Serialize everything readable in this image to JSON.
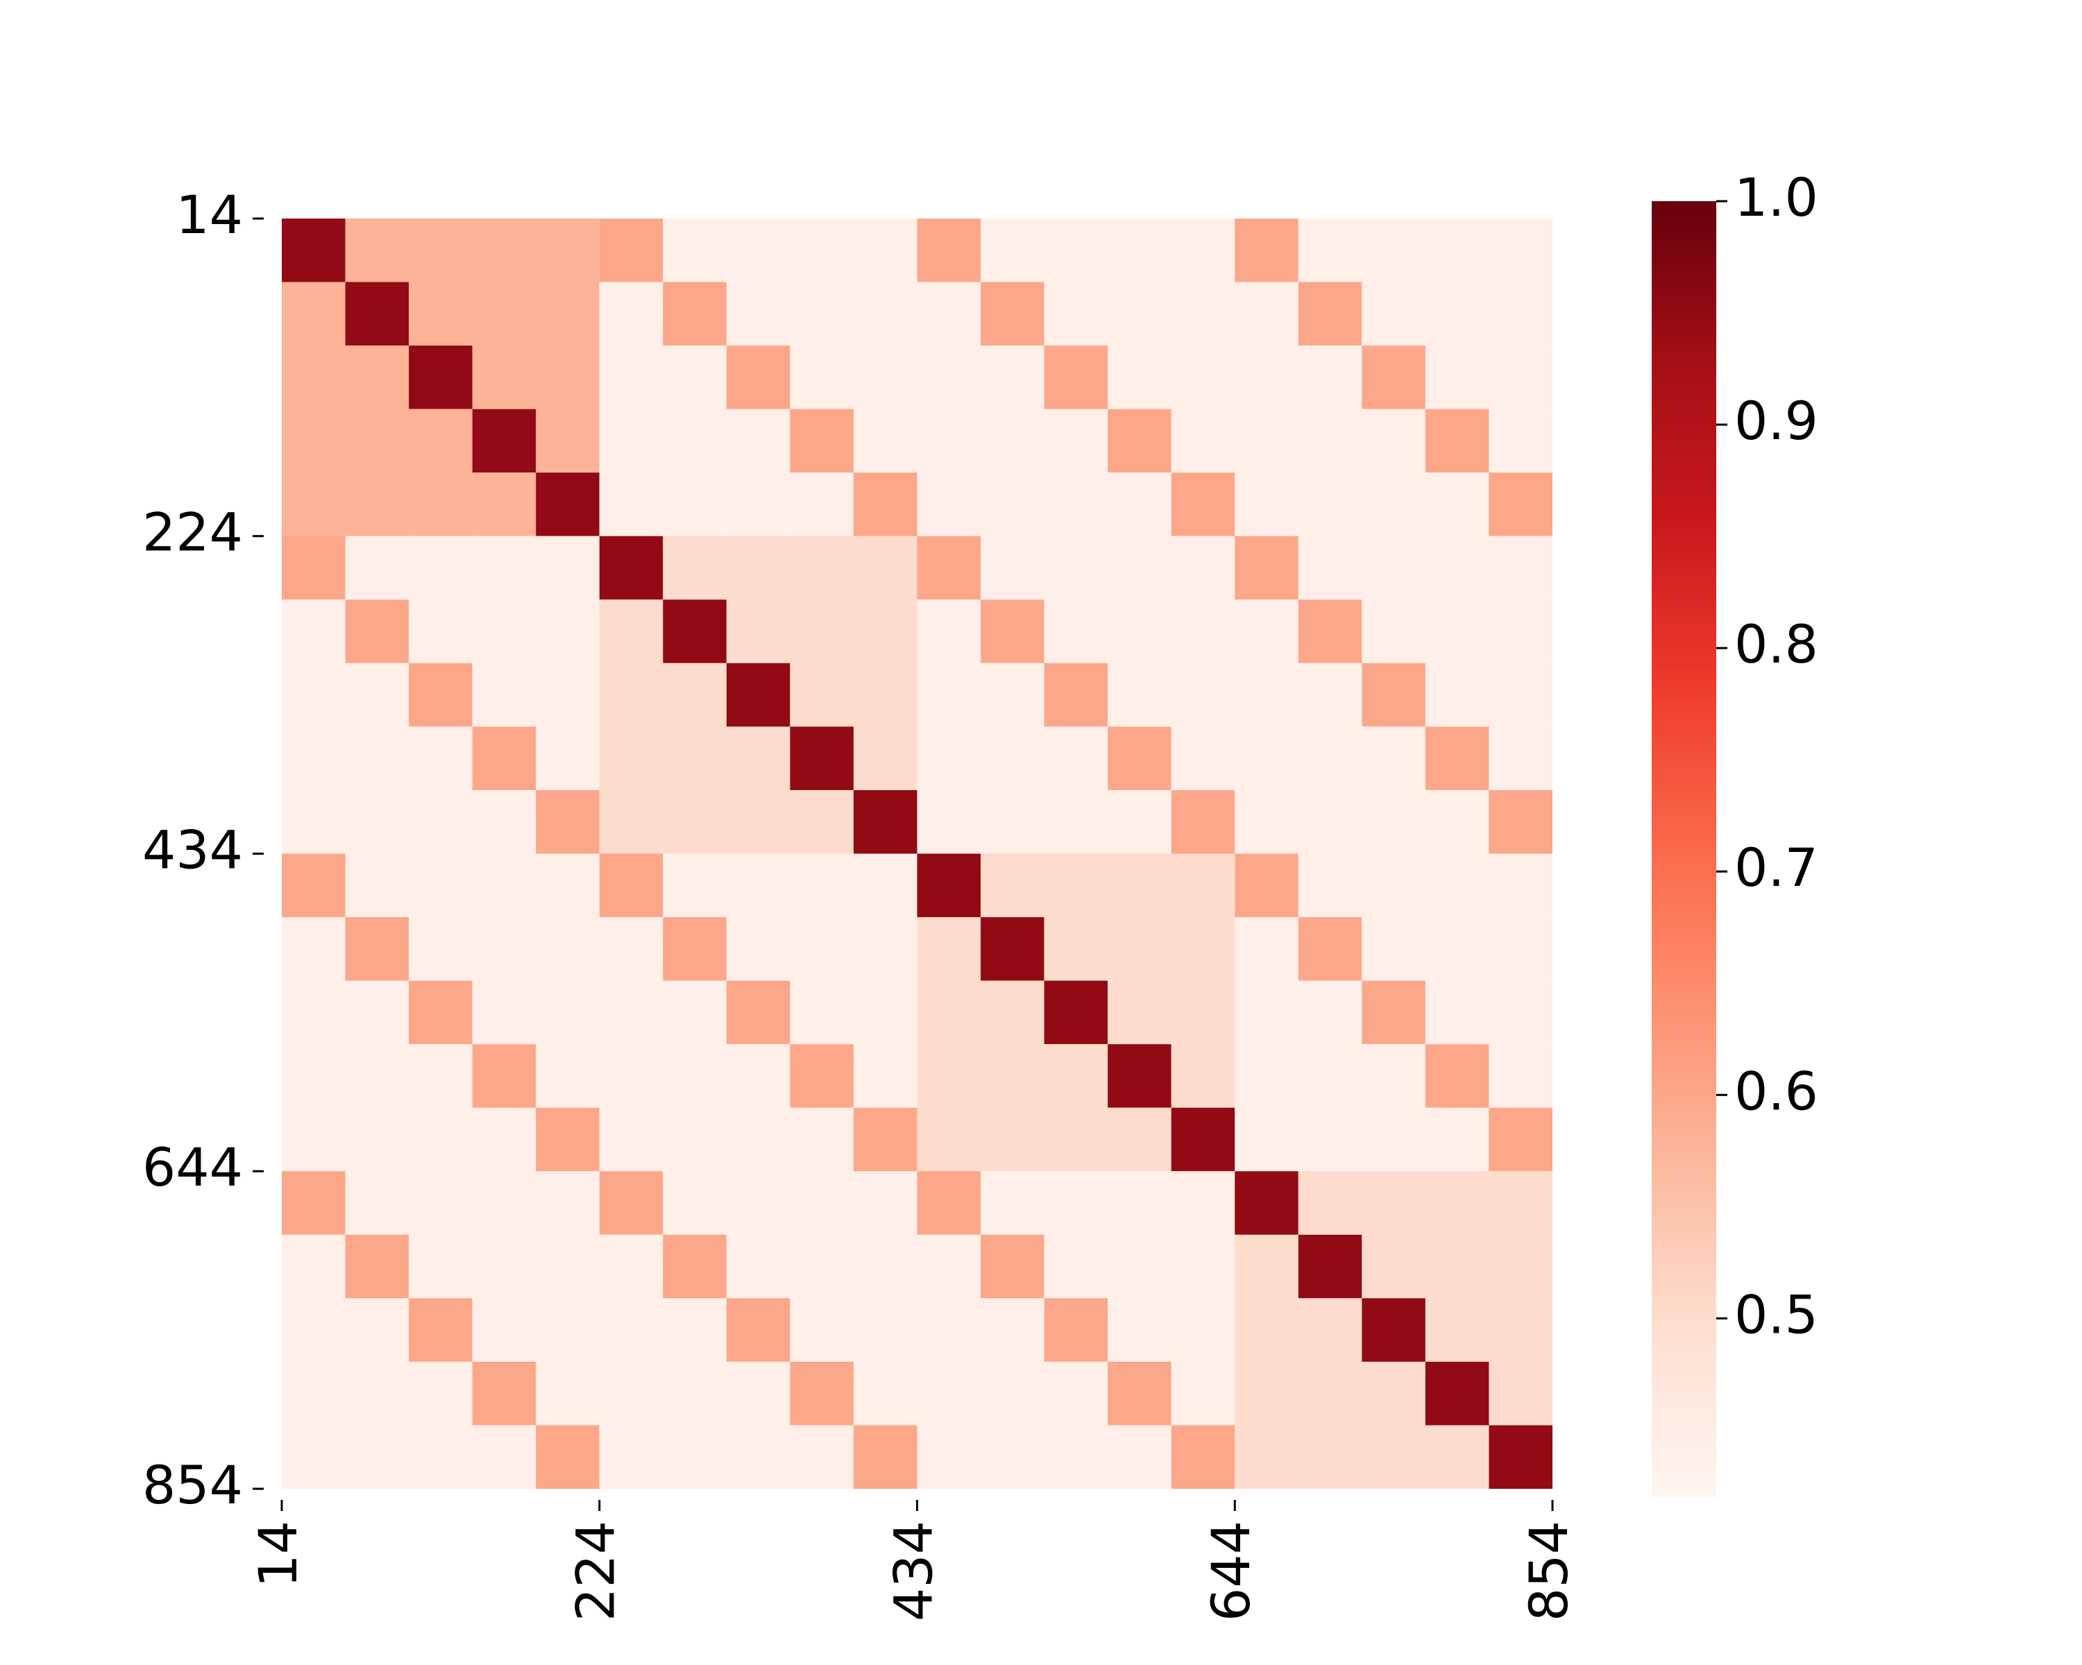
{
  "chart_data": {
    "type": "heatmap",
    "bins": [
      14,
      56,
      98,
      140,
      182,
      224,
      266,
      308,
      350,
      392,
      434,
      476,
      518,
      560,
      602,
      644,
      686,
      728,
      770,
      812,
      854
    ],
    "values": [
      [
        0.95,
        0.58,
        0.58,
        0.58,
        0.58,
        0.6,
        0.44,
        0.44,
        0.44,
        0.44,
        0.6,
        0.44,
        0.44,
        0.44,
        0.44,
        0.6,
        0.44,
        0.44,
        0.44,
        0.44
      ],
      [
        0.58,
        0.95,
        0.58,
        0.58,
        0.58,
        0.44,
        0.6,
        0.44,
        0.44,
        0.44,
        0.44,
        0.6,
        0.44,
        0.44,
        0.44,
        0.44,
        0.6,
        0.44,
        0.44,
        0.44
      ],
      [
        0.58,
        0.58,
        0.95,
        0.58,
        0.58,
        0.44,
        0.44,
        0.6,
        0.44,
        0.44,
        0.44,
        0.44,
        0.6,
        0.44,
        0.44,
        0.44,
        0.44,
        0.6,
        0.44,
        0.44
      ],
      [
        0.58,
        0.58,
        0.58,
        0.95,
        0.58,
        0.44,
        0.44,
        0.44,
        0.6,
        0.44,
        0.44,
        0.44,
        0.44,
        0.6,
        0.44,
        0.44,
        0.44,
        0.44,
        0.6,
        0.44
      ],
      [
        0.58,
        0.58,
        0.58,
        0.58,
        0.95,
        0.44,
        0.44,
        0.44,
        0.44,
        0.6,
        0.44,
        0.44,
        0.44,
        0.44,
        0.6,
        0.44,
        0.44,
        0.44,
        0.44,
        0.6
      ],
      [
        0.6,
        0.44,
        0.44,
        0.44,
        0.44,
        0.95,
        0.5,
        0.5,
        0.5,
        0.5,
        0.6,
        0.44,
        0.44,
        0.44,
        0.44,
        0.6,
        0.44,
        0.44,
        0.44,
        0.44
      ],
      [
        0.44,
        0.6,
        0.44,
        0.44,
        0.44,
        0.5,
        0.95,
        0.5,
        0.5,
        0.5,
        0.44,
        0.6,
        0.44,
        0.44,
        0.44,
        0.44,
        0.6,
        0.44,
        0.44,
        0.44
      ],
      [
        0.44,
        0.44,
        0.6,
        0.44,
        0.44,
        0.5,
        0.5,
        0.95,
        0.5,
        0.5,
        0.44,
        0.44,
        0.6,
        0.44,
        0.44,
        0.44,
        0.44,
        0.6,
        0.44,
        0.44
      ],
      [
        0.44,
        0.44,
        0.44,
        0.6,
        0.44,
        0.5,
        0.5,
        0.5,
        0.95,
        0.5,
        0.44,
        0.44,
        0.44,
        0.6,
        0.44,
        0.44,
        0.44,
        0.44,
        0.6,
        0.44
      ],
      [
        0.44,
        0.44,
        0.44,
        0.44,
        0.6,
        0.5,
        0.5,
        0.5,
        0.5,
        0.95,
        0.44,
        0.44,
        0.44,
        0.44,
        0.6,
        0.44,
        0.44,
        0.44,
        0.44,
        0.6
      ],
      [
        0.6,
        0.44,
        0.44,
        0.44,
        0.44,
        0.6,
        0.44,
        0.44,
        0.44,
        0.44,
        0.95,
        0.5,
        0.5,
        0.5,
        0.5,
        0.6,
        0.44,
        0.44,
        0.44,
        0.44
      ],
      [
        0.44,
        0.6,
        0.44,
        0.44,
        0.44,
        0.44,
        0.6,
        0.44,
        0.44,
        0.44,
        0.5,
        0.95,
        0.5,
        0.5,
        0.5,
        0.44,
        0.6,
        0.44,
        0.44,
        0.44
      ],
      [
        0.44,
        0.44,
        0.6,
        0.44,
        0.44,
        0.44,
        0.44,
        0.6,
        0.44,
        0.44,
        0.5,
        0.5,
        0.95,
        0.5,
        0.5,
        0.44,
        0.44,
        0.6,
        0.44,
        0.44
      ],
      [
        0.44,
        0.44,
        0.44,
        0.6,
        0.44,
        0.44,
        0.44,
        0.44,
        0.6,
        0.44,
        0.5,
        0.5,
        0.5,
        0.95,
        0.5,
        0.44,
        0.44,
        0.44,
        0.6,
        0.44
      ],
      [
        0.44,
        0.44,
        0.44,
        0.44,
        0.6,
        0.44,
        0.44,
        0.44,
        0.44,
        0.6,
        0.5,
        0.5,
        0.5,
        0.5,
        0.95,
        0.44,
        0.44,
        0.44,
        0.44,
        0.6
      ],
      [
        0.6,
        0.44,
        0.44,
        0.44,
        0.44,
        0.6,
        0.44,
        0.44,
        0.44,
        0.44,
        0.6,
        0.44,
        0.44,
        0.44,
        0.44,
        0.95,
        0.5,
        0.5,
        0.5,
        0.5
      ],
      [
        0.44,
        0.6,
        0.44,
        0.44,
        0.44,
        0.44,
        0.6,
        0.44,
        0.44,
        0.44,
        0.44,
        0.6,
        0.44,
        0.44,
        0.44,
        0.5,
        0.95,
        0.5,
        0.5,
        0.5
      ],
      [
        0.44,
        0.44,
        0.6,
        0.44,
        0.44,
        0.44,
        0.44,
        0.6,
        0.44,
        0.44,
        0.44,
        0.44,
        0.6,
        0.44,
        0.44,
        0.5,
        0.5,
        0.95,
        0.5,
        0.5
      ],
      [
        0.44,
        0.44,
        0.44,
        0.6,
        0.44,
        0.44,
        0.44,
        0.44,
        0.6,
        0.44,
        0.44,
        0.44,
        0.44,
        0.6,
        0.44,
        0.5,
        0.5,
        0.5,
        0.95,
        0.5
      ],
      [
        0.44,
        0.44,
        0.44,
        0.44,
        0.6,
        0.44,
        0.44,
        0.44,
        0.44,
        0.6,
        0.44,
        0.44,
        0.44,
        0.44,
        0.6,
        0.5,
        0.5,
        0.5,
        0.5,
        0.95
      ]
    ],
    "xlim": [
      14,
      854
    ],
    "ylim": [
      14,
      854
    ],
    "xticks": [
      14,
      224,
      434,
      644,
      854
    ],
    "yticks": [
      14,
      224,
      434,
      644,
      854
    ],
    "clim": [
      0.42,
      1.0
    ],
    "cticks": [
      0.5,
      0.6,
      0.7,
      0.8,
      0.9,
      {
        "value": 1.0,
        "label": "1.0"
      }
    ],
    "colormap": [
      "#fff5f0",
      "#fee0d2",
      "#fcbba1",
      "#fc9272",
      "#fb6a4a",
      "#ef3b2c",
      "#cb181d",
      "#a50f15",
      "#67000d"
    ]
  }
}
